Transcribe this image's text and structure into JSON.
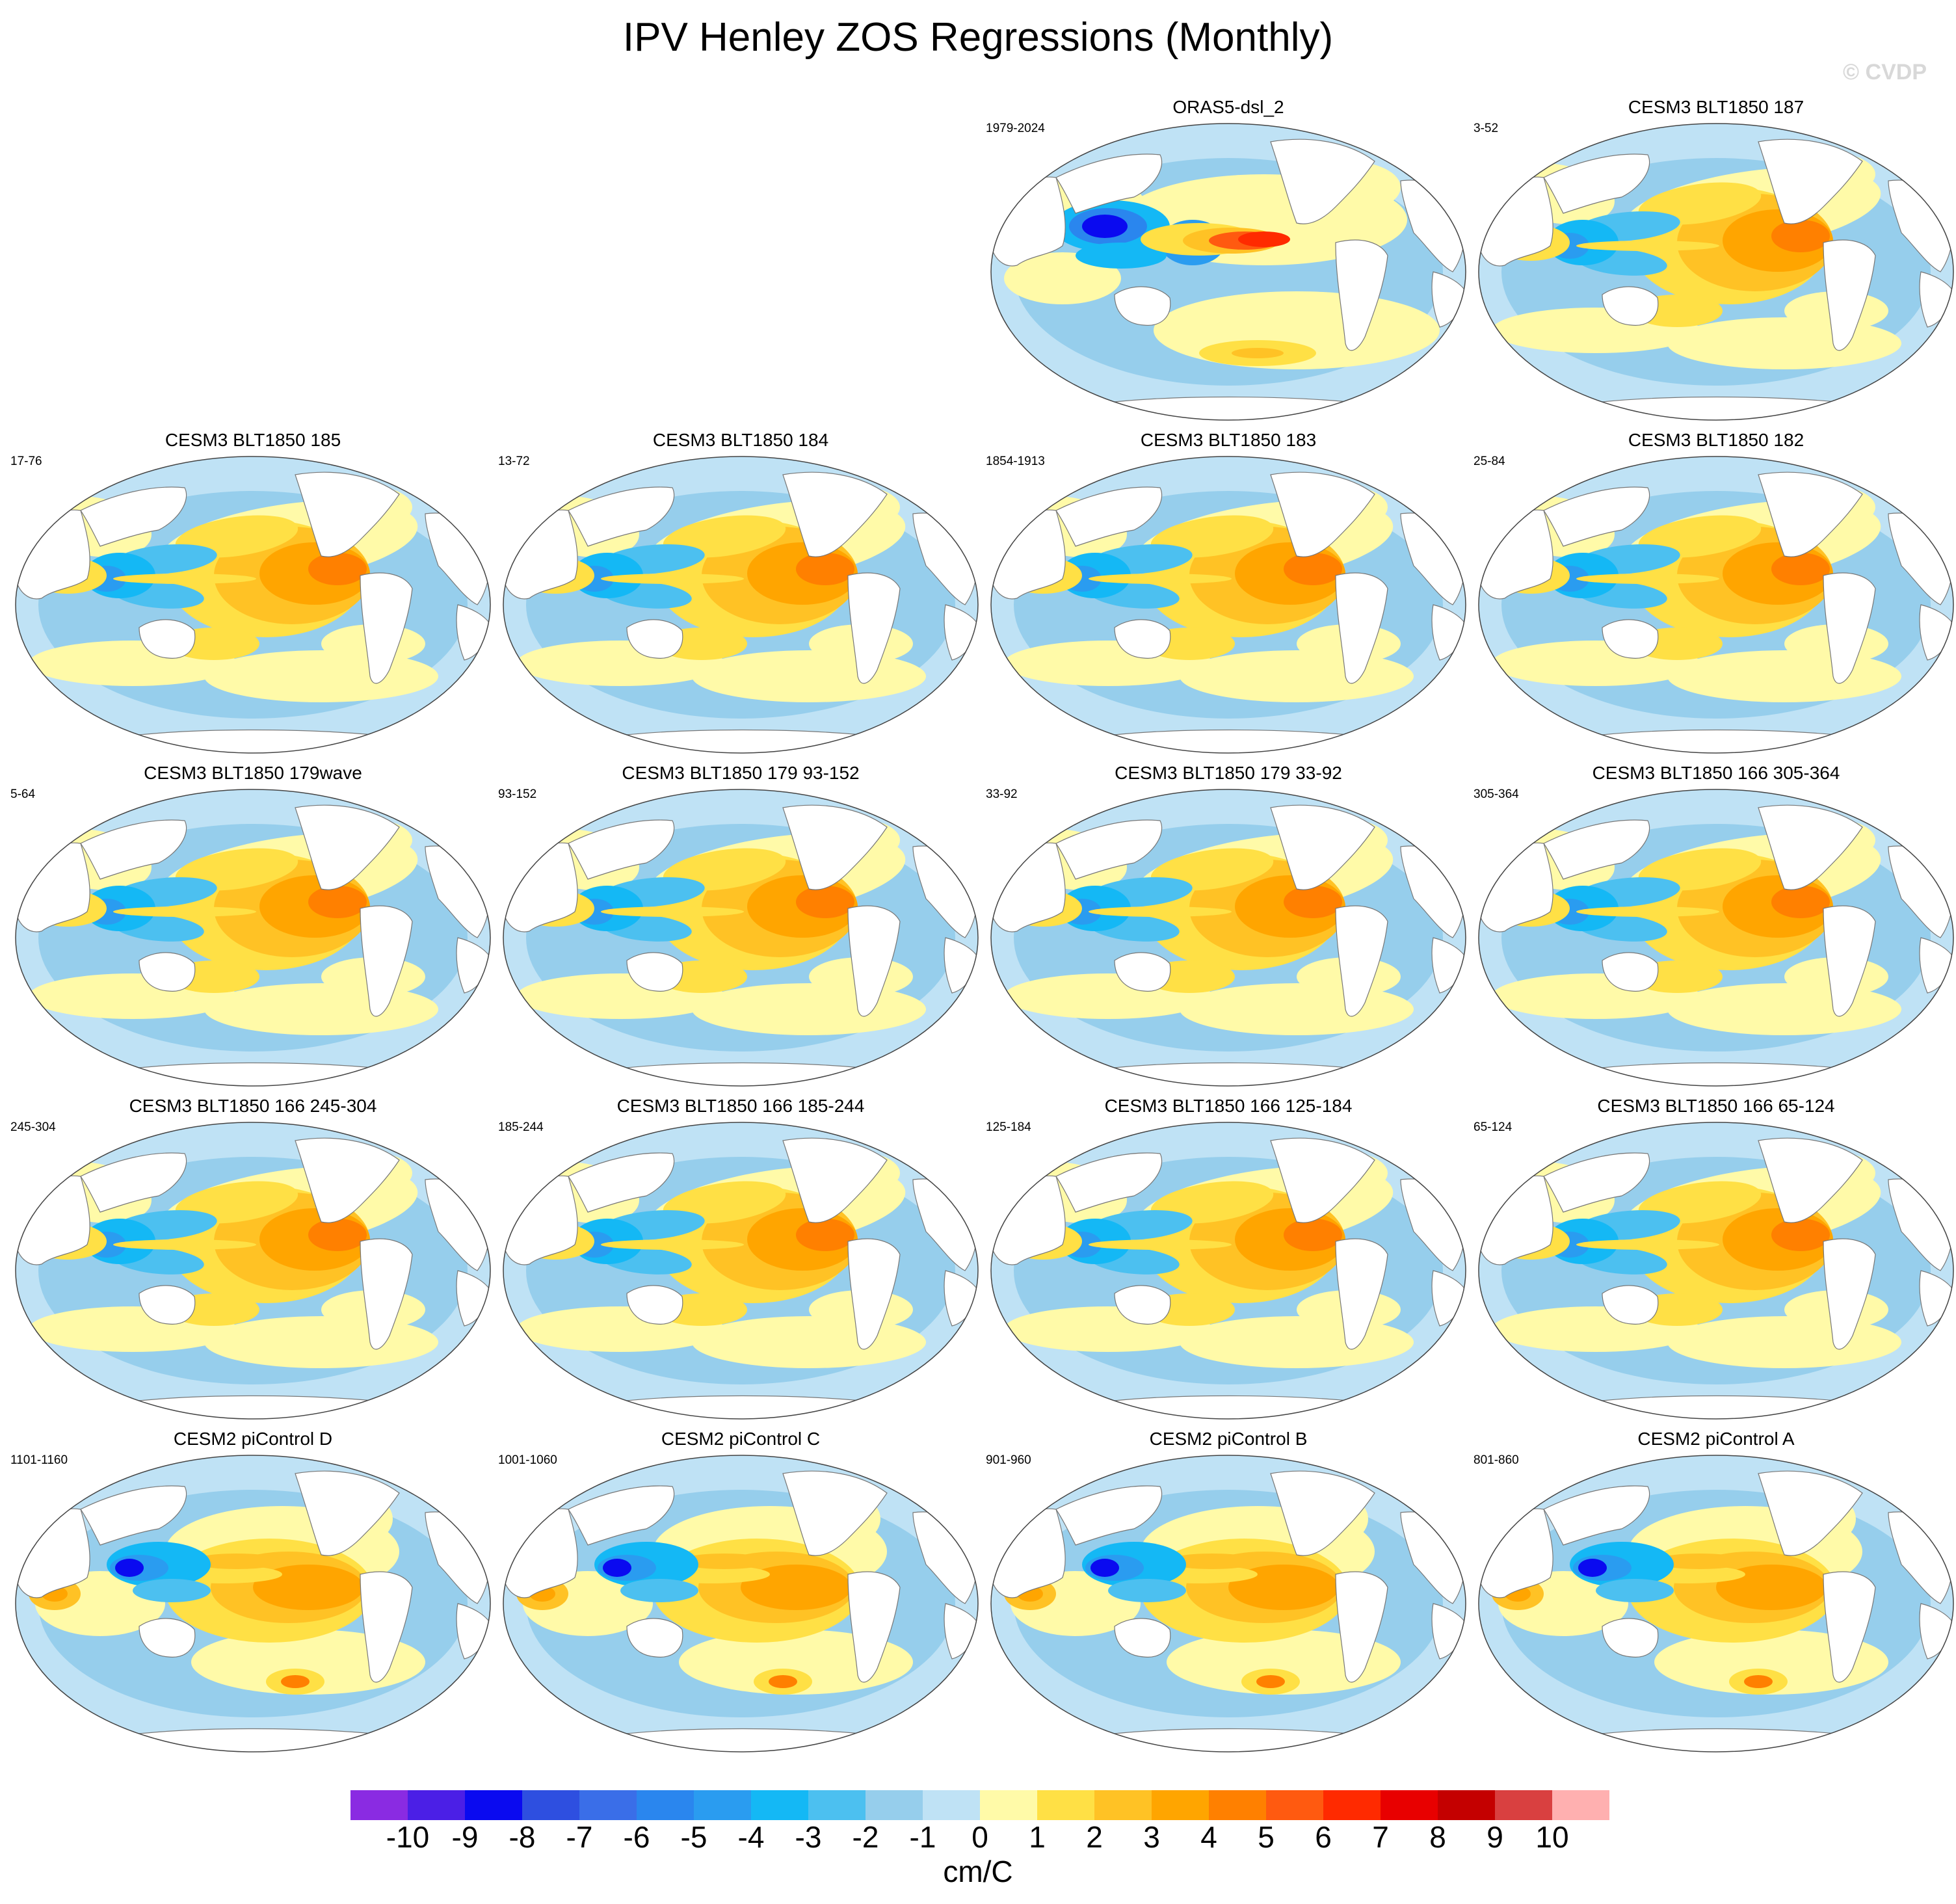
{
  "title": "IPV Henley ZOS Regressions (Monthly)",
  "watermark": "© CVDP",
  "chart_data": {
    "type": "heatmap",
    "projection": "robinson-like global maps centred on the Pacific",
    "variable_units": "cm/C",
    "panels": [
      {
        "title": "ORAS5-dsl_2",
        "years": "1979-2024",
        "pattern": "obs"
      },
      {
        "title": "CESM3 BLT1850 187",
        "years": "3-52",
        "pattern": "cesm3"
      },
      {
        "title": "CESM3 BLT1850 185",
        "years": "17-76",
        "pattern": "cesm3"
      },
      {
        "title": "CESM3 BLT1850 184",
        "years": "13-72",
        "pattern": "cesm3"
      },
      {
        "title": "CESM3 BLT1850 183",
        "years": "1854-1913",
        "pattern": "cesm3"
      },
      {
        "title": "CESM3 BLT1850 182",
        "years": "25-84",
        "pattern": "cesm3"
      },
      {
        "title": "CESM3 BLT1850 179wave",
        "years": "5-64",
        "pattern": "cesm3"
      },
      {
        "title": "CESM3 BLT1850 179 93-152",
        "years": "93-152",
        "pattern": "cesm3"
      },
      {
        "title": "CESM3 BLT1850 179 33-92",
        "years": "33-92",
        "pattern": "cesm3"
      },
      {
        "title": "CESM3 BLT1850 166 305-364",
        "years": "305-364",
        "pattern": "cesm3"
      },
      {
        "title": "CESM3 BLT1850 166 245-304",
        "years": "245-304",
        "pattern": "cesm3"
      },
      {
        "title": "CESM3 BLT1850 166 185-244",
        "years": "185-244",
        "pattern": "cesm3"
      },
      {
        "title": "CESM3 BLT1850 166 125-184",
        "years": "125-184",
        "pattern": "cesm3"
      },
      {
        "title": "CESM3 BLT1850 166 65-124",
        "years": "65-124",
        "pattern": "cesm3"
      },
      {
        "title": "CESM2 piControl D",
        "years": "1101-1160",
        "pattern": "cesm2"
      },
      {
        "title": "CESM2 piControl C",
        "years": "1001-1060",
        "pattern": "cesm2"
      },
      {
        "title": "CESM2 piControl B",
        "years": "901-960",
        "pattern": "cesm2"
      },
      {
        "title": "CESM2 piControl A",
        "years": "801-860",
        "pattern": "cesm2"
      }
    ],
    "colorbar": {
      "labels": [
        "-10",
        "-9",
        "-8",
        "-7",
        "-6",
        "-5",
        "-4",
        "-3",
        "-2",
        "-1",
        "0",
        "1",
        "2",
        "3",
        "4",
        "5",
        "6",
        "7",
        "8",
        "9",
        "10"
      ],
      "colors": [
        "#8a2be2",
        "#4b1fe6",
        "#0a0af0",
        "#2e4fe0",
        "#3a6ee8",
        "#2a86ee",
        "#2a9cf0",
        "#14b8f5",
        "#4cc0f0",
        "#96ceec",
        "#bfe2f5",
        "#fffaa8",
        "#ffe045",
        "#ffc225",
        "#ffa500",
        "#ff8000",
        "#ff5a10",
        "#ff2a00",
        "#e80000",
        "#c40000",
        "#d94040",
        "#ffb0b0"
      ],
      "units": "cm/C"
    }
  }
}
